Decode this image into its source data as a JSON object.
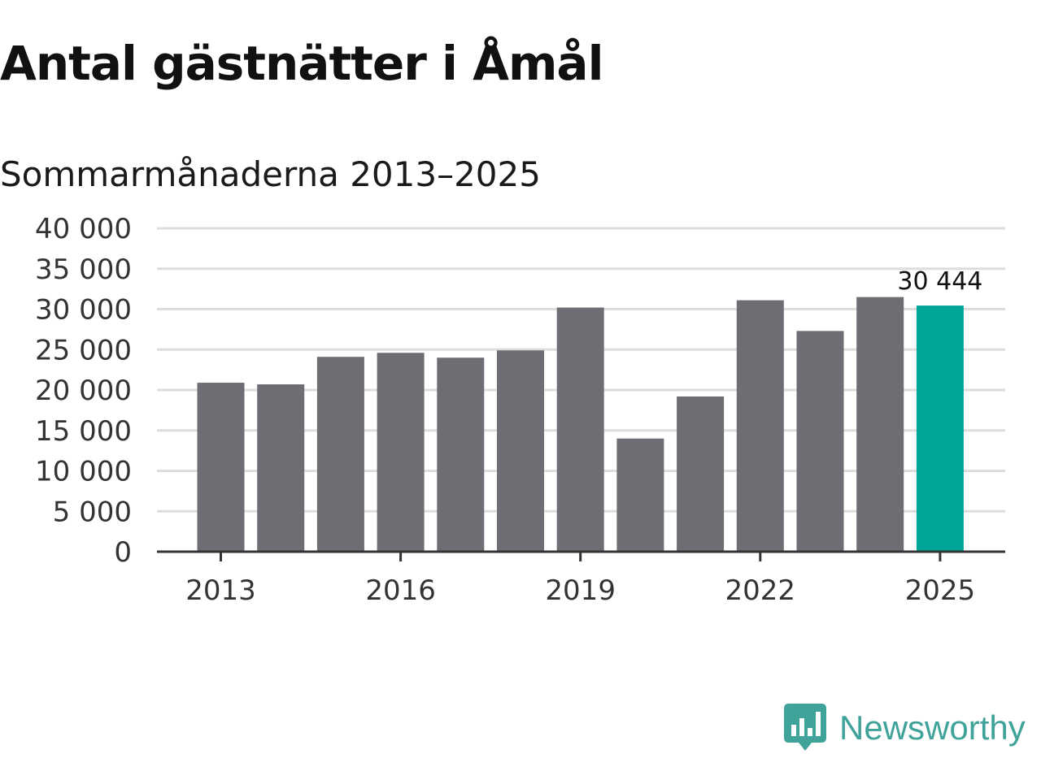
{
  "header": {
    "title": "Antal gästnätter i Åmål",
    "subtitle": "Sommarmånaderna 2013–2025"
  },
  "brand": {
    "name": "Newsworthy",
    "icon": "newsworthy-logo-icon",
    "color": "#3fa39a"
  },
  "colors": {
    "bar": "#6e6d73",
    "highlight": "#00a59a",
    "grid": "#dddddd",
    "axis": "#333333"
  },
  "chart_data": {
    "type": "bar",
    "x": [
      2013,
      2014,
      2015,
      2016,
      2017,
      2018,
      2019,
      2020,
      2021,
      2022,
      2023,
      2024,
      2025
    ],
    "values": [
      20900,
      20700,
      24100,
      24600,
      24000,
      24900,
      30200,
      14000,
      19200,
      31100,
      27300,
      31500,
      30444
    ],
    "xticks": [
      "2013",
      "2016",
      "2019",
      "2022",
      "2025"
    ],
    "yticks": [
      "0",
      "5 000",
      "10 000",
      "15 000",
      "20 000",
      "25 000",
      "30 000",
      "35 000",
      "40 000"
    ],
    "ylim": [
      0,
      40000
    ],
    "highlight": {
      "x": 2025,
      "label": "30 444"
    },
    "grid": true,
    "legend": "none"
  }
}
